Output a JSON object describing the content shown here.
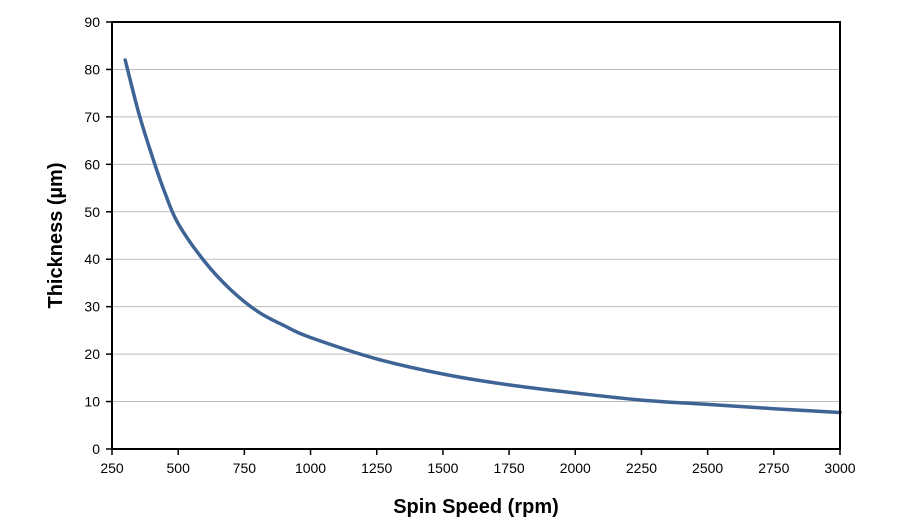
{
  "chart_data": {
    "type": "line",
    "xlabel": "Spin Speed (rpm)",
    "ylabel": "Thickness (µm)",
    "xlim": [
      250,
      3000
    ],
    "ylim": [
      0,
      90
    ],
    "xticks": [
      250,
      500,
      750,
      1000,
      1250,
      1500,
      1750,
      2000,
      2250,
      2500,
      2750,
      3000
    ],
    "yticks": [
      0,
      10,
      20,
      30,
      40,
      50,
      60,
      70,
      80,
      90
    ],
    "grid": "horizontal",
    "legend": "none",
    "line_color": "#3e6496",
    "series": [
      {
        "x": [
          300,
          350,
          400,
          450,
          500,
          600,
          700,
          800,
          900,
          1000,
          1250,
          1500,
          1750,
          2000,
          2250,
          2500,
          2750,
          3000
        ],
        "values": [
          82,
          71,
          62,
          54,
          47.5,
          39.5,
          33.5,
          29,
          26,
          23.5,
          19,
          15.8,
          13.5,
          11.8,
          10.3,
          9.4,
          8.5,
          7.7
        ]
      }
    ]
  }
}
